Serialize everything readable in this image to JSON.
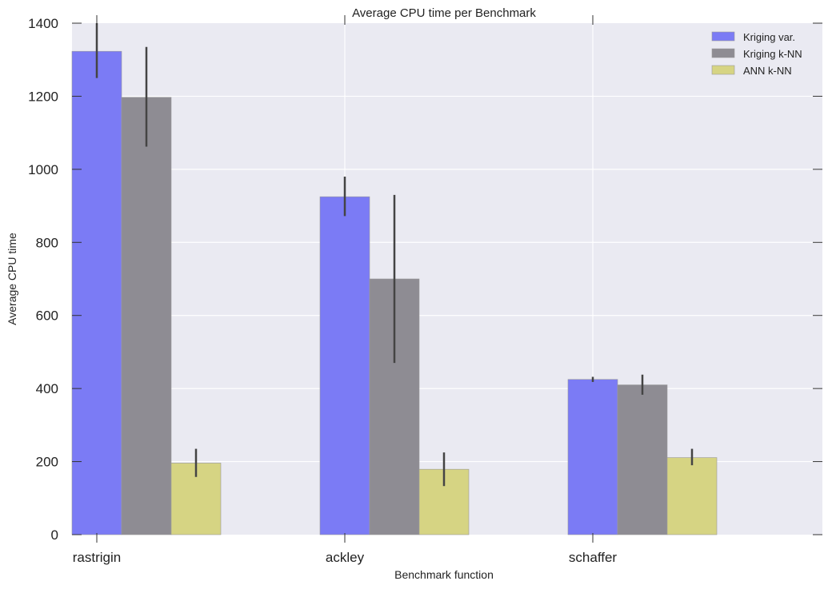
{
  "chart_data": {
    "type": "bar",
    "title": "Average CPU time per Benchmark",
    "xlabel": "Benchmark function",
    "ylabel": "Average CPU time",
    "categories": [
      "rastrigin",
      "ackley",
      "schaffer"
    ],
    "ylim": [
      0,
      1400
    ],
    "yticks": [
      0,
      200,
      400,
      600,
      800,
      1000,
      1200,
      1400
    ],
    "grid": true,
    "legend_position": "top-right",
    "series": [
      {
        "name": "Kriging var.",
        "color": "#7b7bf5",
        "values": [
          1323,
          925,
          425
        ],
        "error": [
          [
            1250,
            1400
          ],
          [
            872,
            980
          ],
          [
            418,
            432
          ]
        ]
      },
      {
        "name": "Kriging k-NN",
        "color": "#8e8c93",
        "values": [
          1197,
          700,
          410
        ],
        "error": [
          [
            1062,
            1335
          ],
          [
            470,
            930
          ],
          [
            383,
            438
          ]
        ]
      },
      {
        "name": "ANN k-NN",
        "color": "#d6d483",
        "values": [
          196,
          179,
          211
        ],
        "error": [
          [
            158,
            235
          ],
          [
            133,
            225
          ],
          [
            190,
            235
          ]
        ]
      }
    ]
  }
}
